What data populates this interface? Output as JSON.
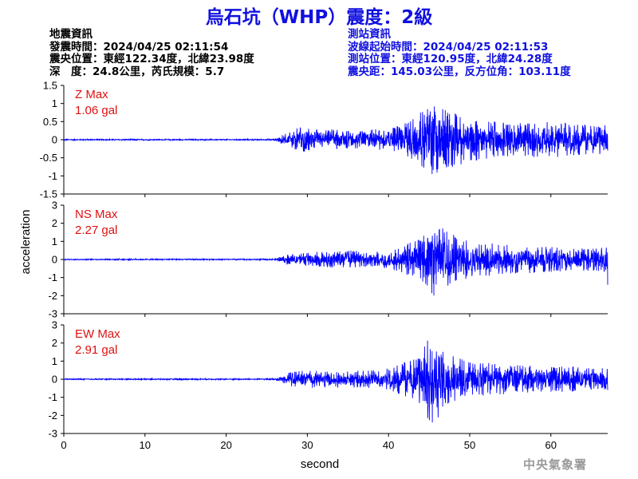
{
  "title": "烏石坑（WHP）震度：2級",
  "quake_info": {
    "heading": "地震資訊",
    "origin_time": "發震時間：2024/04/25 02:11:54",
    "epicenter": "震央位置：東經122.34度，北緯23.98度",
    "depth_magnitude": "深　度：24.8公里，芮氏規模：5.7"
  },
  "station_info": {
    "heading": "測站資訊",
    "wave_start": "波線起始時間：2024/04/25 02:11:53",
    "station_location": "測站位置：東經120.95度，北緯24.28度",
    "distance_azimuth": "震央距：145.03公里，反方位角：103.11度"
  },
  "agency": "中央氣象署",
  "colors": {
    "trace": "#0000ff",
    "max_label": "#e01010",
    "title": "#1010e0"
  },
  "chart_data": {
    "type": "line",
    "xlabel": "second",
    "ylabel": "acceleration",
    "xlim": [
      0,
      67
    ],
    "xticks": [
      0,
      10,
      20,
      30,
      40,
      50,
      60
    ],
    "panels": [
      {
        "name": "Z",
        "max_title": "Z Max",
        "max_value": "1.06 gal",
        "ylim": [
          -1.5,
          1.5
        ],
        "yticks": [
          1.5,
          1,
          0.5,
          0,
          -0.5,
          -1,
          -1.5
        ],
        "yticklabels": [
          "1.5",
          "1",
          "0.5",
          "0",
          "-0.5",
          "-1",
          "-1.5"
        ],
        "envelope": [
          [
            0,
            0.02
          ],
          [
            26,
            0.02
          ],
          [
            26.5,
            0.1
          ],
          [
            28,
            0.22
          ],
          [
            29,
            0.35
          ],
          [
            32,
            0.3
          ],
          [
            35,
            0.25
          ],
          [
            38,
            0.28
          ],
          [
            40,
            0.32
          ],
          [
            42,
            0.45
          ],
          [
            44,
            0.8
          ],
          [
            45.5,
            1.0
          ],
          [
            47,
            0.85
          ],
          [
            50,
            0.6
          ],
          [
            55,
            0.45
          ],
          [
            60,
            0.5
          ],
          [
            63,
            0.45
          ],
          [
            67,
            0.4
          ]
        ],
        "end_value": -0.3
      },
      {
        "name": "NS",
        "max_title": "NS Max",
        "max_value": "2.27 gal",
        "ylim": [
          -3,
          3
        ],
        "yticks": [
          3,
          2,
          1,
          0,
          -1,
          -2,
          -3
        ],
        "yticklabels": [
          "3",
          "2",
          "1",
          "0",
          "-1",
          "-2",
          "-3"
        ],
        "envelope": [
          [
            0,
            0.04
          ],
          [
            26,
            0.04
          ],
          [
            26.5,
            0.15
          ],
          [
            28,
            0.3
          ],
          [
            30,
            0.4
          ],
          [
            35,
            0.5
          ],
          [
            38,
            0.45
          ],
          [
            40,
            0.5
          ],
          [
            42,
            0.8
          ],
          [
            44,
            1.3
          ],
          [
            45.5,
            2.2
          ],
          [
            47,
            1.6
          ],
          [
            50,
            1.0
          ],
          [
            55,
            0.8
          ],
          [
            60,
            0.7
          ],
          [
            63,
            0.6
          ],
          [
            67,
            0.7
          ]
        ],
        "end_value": -1.4
      },
      {
        "name": "EW",
        "max_title": "EW Max",
        "max_value": "2.91 gal",
        "ylim": [
          -3,
          3
        ],
        "yticks": [
          3,
          2,
          1,
          0,
          -1,
          -2,
          -3
        ],
        "yticklabels": [
          "3",
          "2",
          "1",
          "0",
          "-1",
          "-2",
          "-3"
        ],
        "envelope": [
          [
            0,
            0.04
          ],
          [
            26,
            0.04
          ],
          [
            26.5,
            0.15
          ],
          [
            28,
            0.4
          ],
          [
            30,
            0.5
          ],
          [
            35,
            0.45
          ],
          [
            38,
            0.5
          ],
          [
            40,
            0.6
          ],
          [
            42,
            1.0
          ],
          [
            44,
            1.4
          ],
          [
            45.5,
            2.9
          ],
          [
            47,
            1.5
          ],
          [
            50,
            1.0
          ],
          [
            55,
            0.8
          ],
          [
            60,
            0.7
          ],
          [
            63,
            0.7
          ],
          [
            67,
            0.6
          ]
        ],
        "end_value": -0.6
      }
    ]
  }
}
